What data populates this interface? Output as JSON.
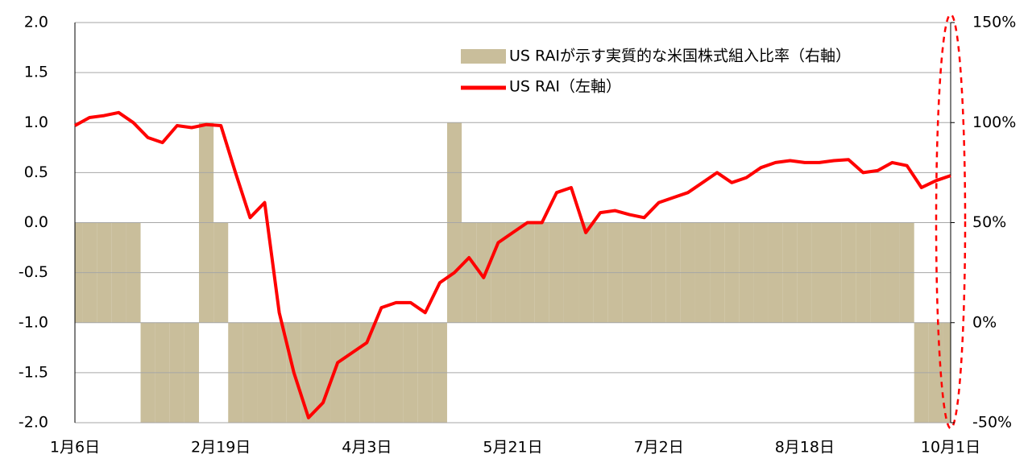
{
  "chart_data": {
    "type": "combo",
    "categories": [
      "1月6日",
      null,
      null,
      null,
      null,
      null,
      null,
      null,
      null,
      null,
      "2月19日",
      null,
      null,
      null,
      null,
      null,
      null,
      null,
      null,
      null,
      "4月3日",
      null,
      null,
      null,
      null,
      null,
      null,
      null,
      null,
      null,
      "5月21日",
      null,
      null,
      null,
      null,
      null,
      null,
      null,
      null,
      null,
      "7月2日",
      null,
      null,
      null,
      null,
      null,
      null,
      null,
      null,
      null,
      "8月18日",
      null,
      null,
      null,
      null,
      null,
      null,
      null,
      null,
      null,
      "10月1日"
    ],
    "series": [
      {
        "name": "US RAIが示す実質的な米国株式組入比率（右軸）",
        "type": "bar",
        "axis": "y2",
        "color": "#c9be9b",
        "values": [
          50,
          50,
          50,
          50,
          50,
          -50,
          -50,
          -50,
          -50,
          100,
          50,
          -50,
          -50,
          -50,
          -50,
          -50,
          -50,
          -50,
          -50,
          -50,
          -50,
          -50,
          -50,
          -50,
          -50,
          -50,
          100,
          50,
          50,
          50,
          50,
          50,
          50,
          50,
          50,
          50,
          50,
          50,
          50,
          50,
          50,
          50,
          50,
          50,
          50,
          50,
          50,
          50,
          50,
          50,
          50,
          50,
          50,
          50,
          50,
          50,
          50,
          50,
          -50,
          -50,
          -50
        ]
      },
      {
        "name": "US RAI（左軸）",
        "type": "line",
        "axis": "y",
        "color": "#ff0000",
        "values": [
          0.97,
          1.05,
          1.07,
          1.1,
          1.0,
          0.85,
          0.8,
          0.97,
          0.95,
          0.98,
          0.97,
          0.5,
          0.05,
          0.2,
          -0.9,
          -1.5,
          -1.95,
          -1.8,
          -1.4,
          -1.3,
          -1.2,
          -0.85,
          -0.8,
          -0.8,
          -0.9,
          -0.6,
          -0.5,
          -0.35,
          -0.55,
          -0.2,
          -0.1,
          0.0,
          0.0,
          0.3,
          0.35,
          -0.1,
          0.1,
          0.12,
          0.08,
          0.05,
          0.2,
          0.25,
          0.3,
          0.4,
          0.5,
          0.4,
          0.45,
          0.55,
          0.6,
          0.62,
          0.6,
          0.6,
          0.62,
          0.63,
          0.5,
          0.52,
          0.6,
          0.57,
          0.35,
          0.42,
          0.47
        ]
      }
    ],
    "ylim": [
      -2,
      2
    ],
    "yticks": [
      {
        "value": -2,
        "label": "-2.0"
      },
      -1.5,
      {
        "value": -1,
        "label": "-1.0"
      },
      -0.5,
      {
        "value": 0,
        "label": "0.0"
      },
      0.5,
      {
        "value": 1,
        "label": "1.0"
      },
      1.5,
      {
        "value": 2,
        "label": "2.0"
      }
    ],
    "y2lim": [
      -50,
      150
    ],
    "y2ticks": [
      {
        "value": -50,
        "label": "-50%"
      },
      {
        "value": 0,
        "label": "0%"
      },
      {
        "value": 50,
        "label": "50%"
      },
      {
        "value": 100,
        "label": "100%"
      },
      {
        "value": 150,
        "label": "150%"
      }
    ],
    "grid": true
  }
}
